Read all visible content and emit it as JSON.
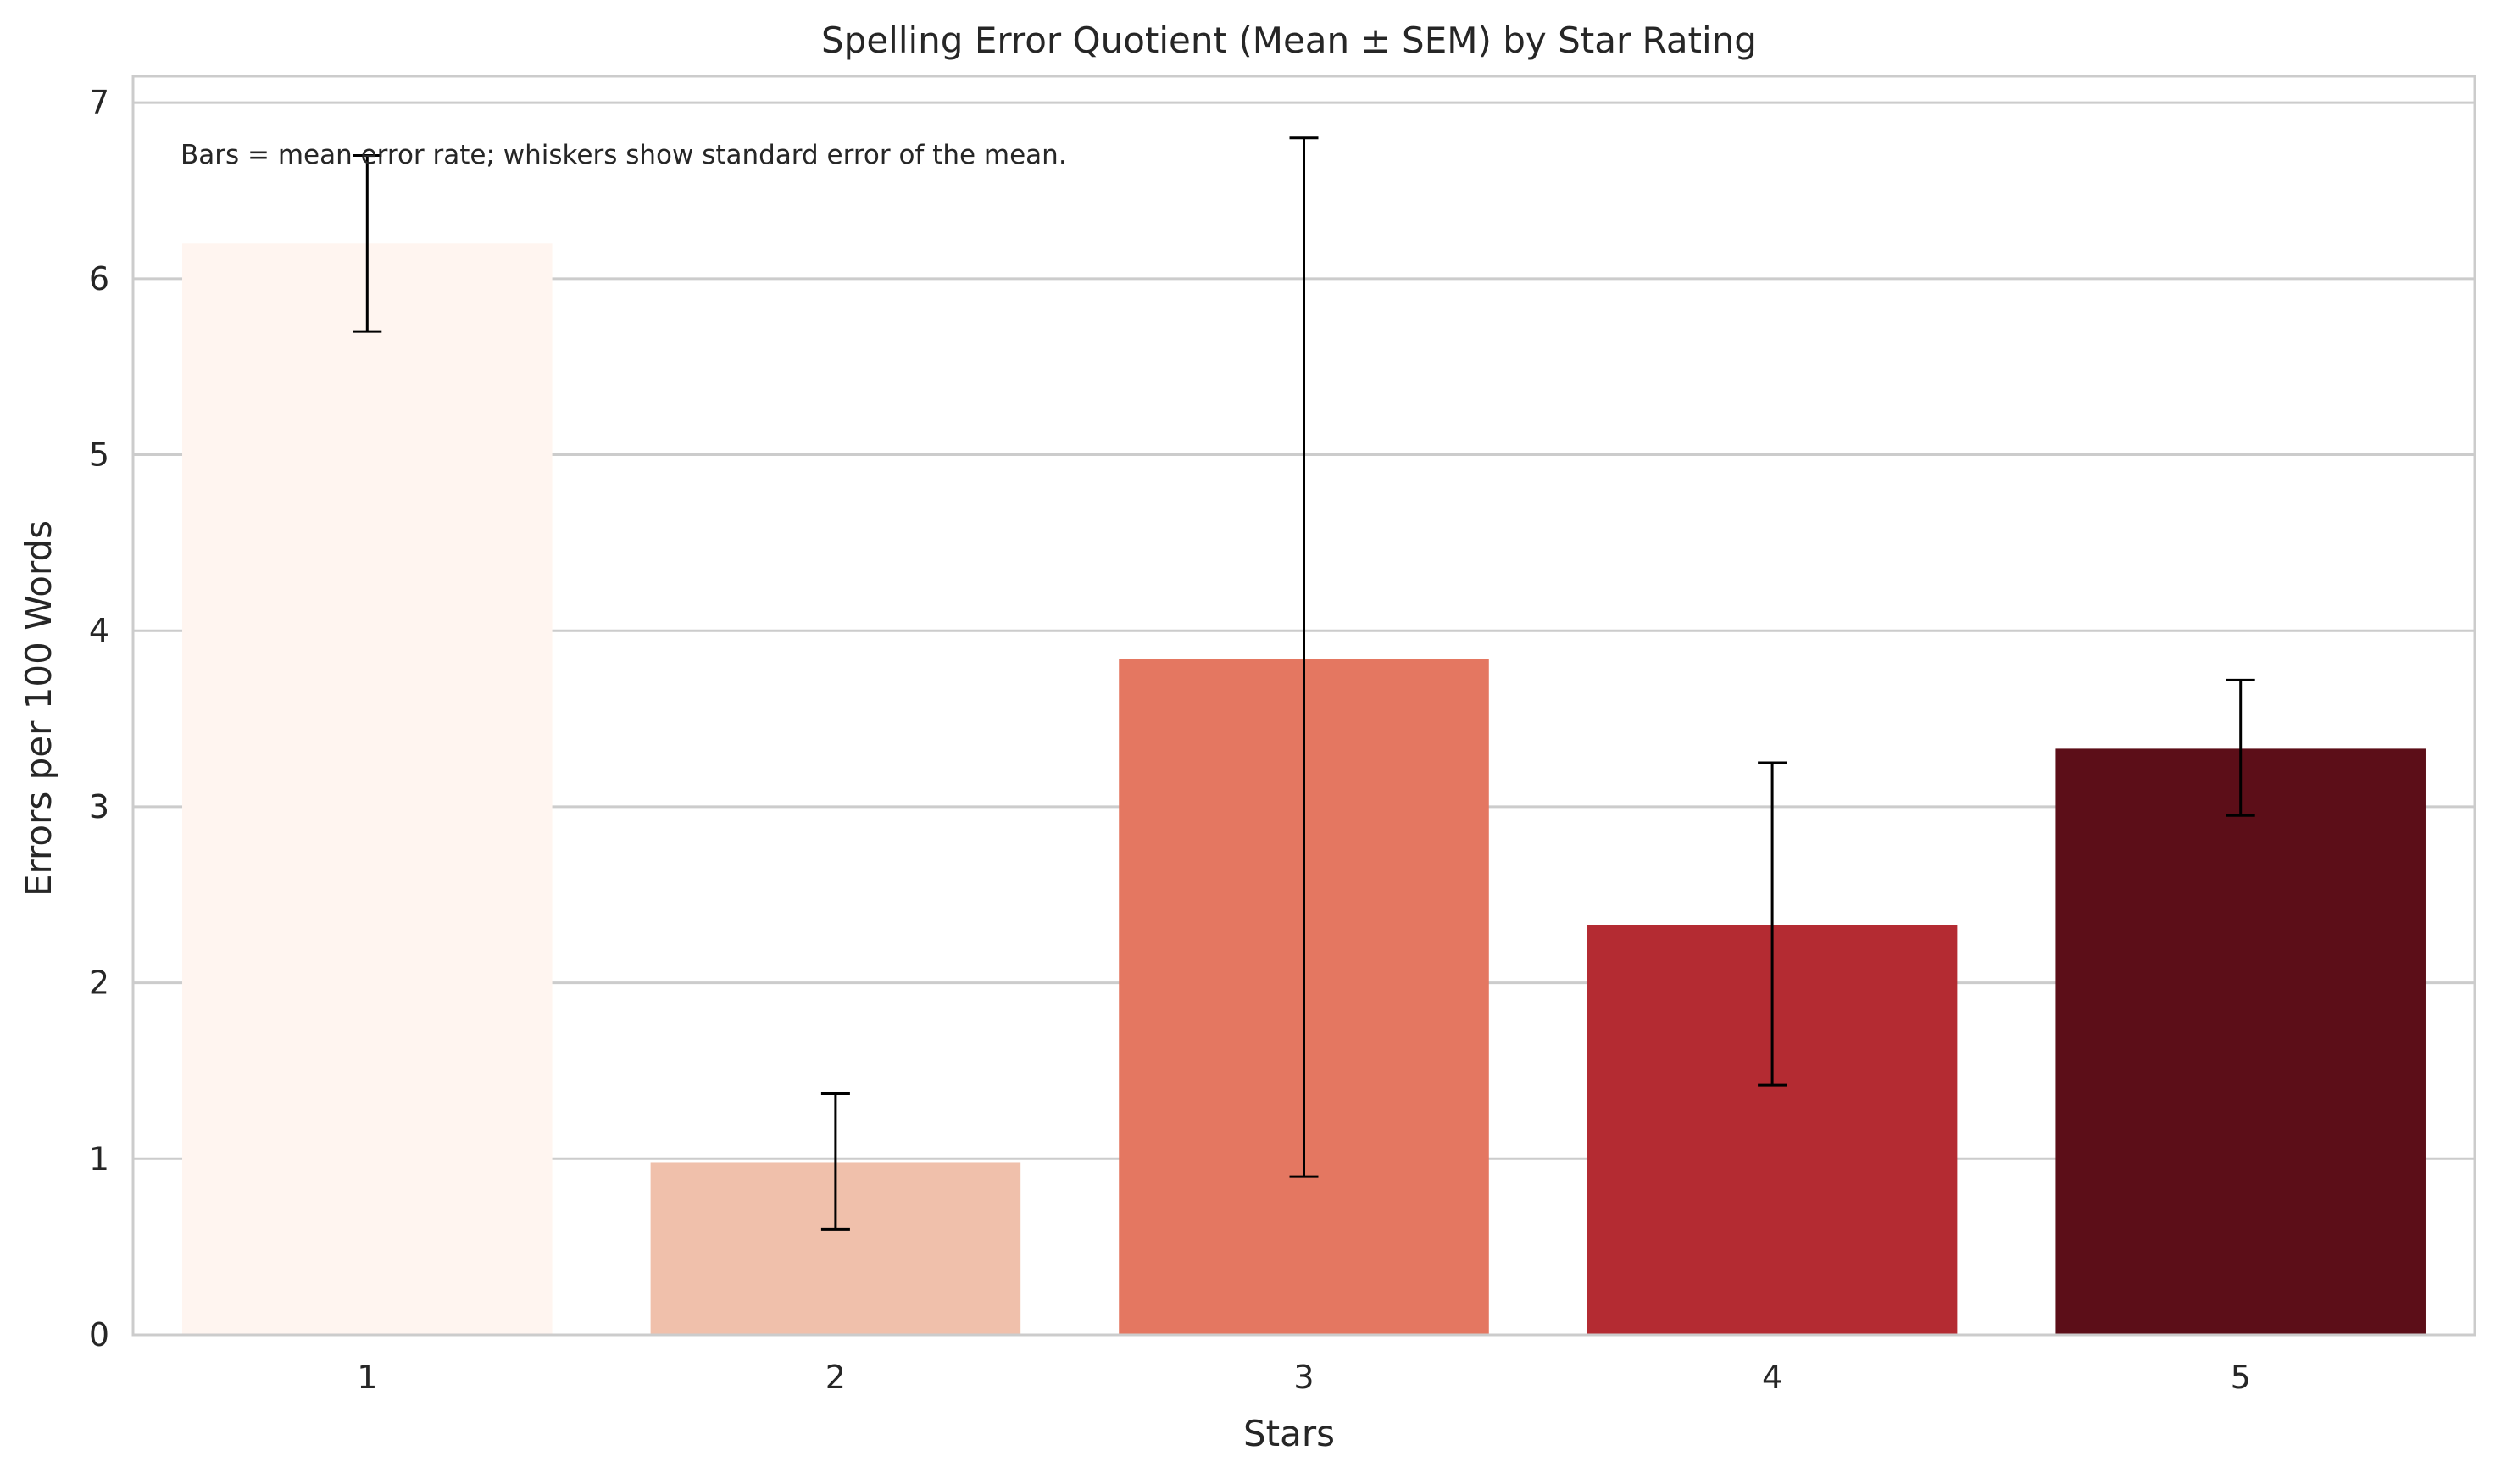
{
  "chart_data": {
    "type": "bar",
    "title": "Spelling Error Quotient (Mean ± SEM) by Star Rating",
    "xlabel": "Stars",
    "ylabel": "Errors per 100 Words",
    "categories": [
      "1",
      "2",
      "3",
      "4",
      "5"
    ],
    "values": [
      6.2,
      0.98,
      3.84,
      2.33,
      3.33
    ],
    "error_low": [
      5.7,
      0.6,
      0.9,
      1.42,
      2.95
    ],
    "error_high": [
      6.7,
      1.37,
      6.8,
      3.25,
      3.72
    ],
    "ylim": [
      0,
      7.15
    ],
    "yticks": [
      "0",
      "1",
      "2",
      "3",
      "4",
      "5",
      "6",
      "7"
    ],
    "grid": "horizontal",
    "colors": [
      "#fff5f0",
      "#f0c0ab",
      "#e47761",
      "#b42b32",
      "#5c0e18"
    ],
    "annotation": "Bars = mean error rate; whiskers show standard error of the mean."
  }
}
